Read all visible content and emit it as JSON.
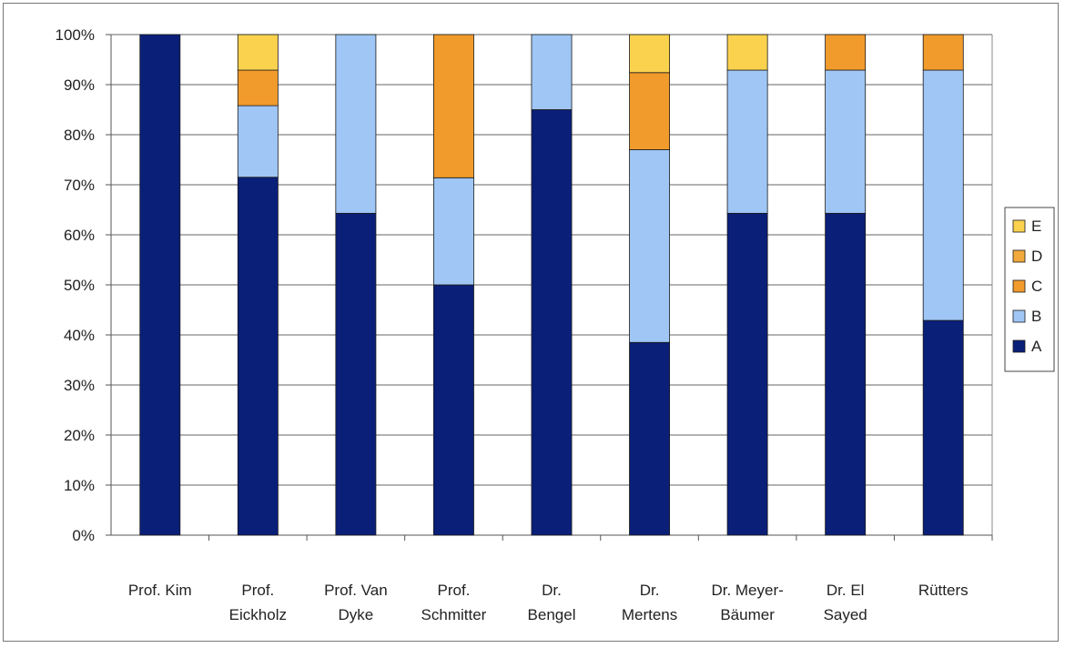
{
  "chart_data": {
    "type": "bar",
    "stacked": true,
    "percent": true,
    "title": "",
    "xlabel": "",
    "ylabel": "",
    "ylim": [
      0,
      100
    ],
    "y_ticks": [
      "0%",
      "10%",
      "20%",
      "30%",
      "40%",
      "50%",
      "60%",
      "70%",
      "80%",
      "90%",
      "100%"
    ],
    "grid": true,
    "legend_position": "right",
    "categories": [
      [
        "Prof. Kim"
      ],
      [
        "Prof.",
        "Eickholz"
      ],
      [
        "Prof. Van",
        "Dyke"
      ],
      [
        "Prof.",
        "Schmitter"
      ],
      [
        "Dr.",
        "Bengel"
      ],
      [
        "Dr.",
        "Mertens"
      ],
      [
        "Dr. Meyer-",
        "Bäumer"
      ],
      [
        "Dr. El",
        "Sayed"
      ],
      [
        "Rütters"
      ]
    ],
    "series": [
      {
        "name": "A",
        "color": "#0a1f78",
        "values": [
          100,
          71.5,
          64.3,
          50,
          85,
          38.5,
          64.3,
          64.3,
          42.9
        ]
      },
      {
        "name": "B",
        "color": "#9fc6f5",
        "values": [
          0,
          14.3,
          35.7,
          21.4,
          15,
          38.5,
          28.6,
          28.6,
          50
        ]
      },
      {
        "name": "C",
        "color": "#f19b2c",
        "values": [
          0,
          7.1,
          0,
          28.6,
          0,
          15.4,
          0,
          7.1,
          7.1
        ]
      },
      {
        "name": "D",
        "color": "#f2a93b",
        "values": [
          0,
          0,
          0,
          0,
          0,
          0,
          0,
          0,
          0
        ]
      },
      {
        "name": "E",
        "color": "#fad24e",
        "values": [
          0,
          7.1,
          0,
          0,
          0,
          7.6,
          7.1,
          0,
          0
        ]
      }
    ],
    "legend_order": [
      "E",
      "D",
      "C",
      "B",
      "A"
    ]
  }
}
